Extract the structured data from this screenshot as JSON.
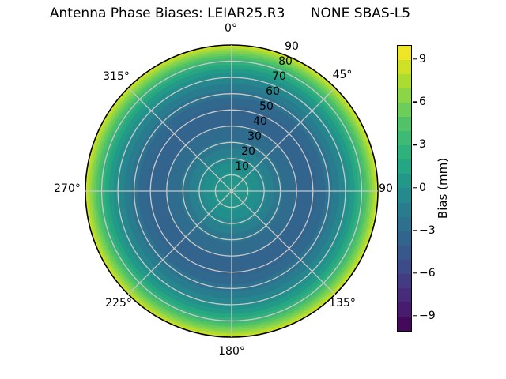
{
  "chart_data": {
    "type": "heatmap",
    "projection": "polar",
    "title": "Antenna Phase Biases: LEIAR25.R3      NONE SBAS-L5",
    "colormap": "viridis",
    "value_range": [
      -10,
      10
    ],
    "grid_on": true,
    "grid_color": "#c8c8c8",
    "outline_color": "#000000",
    "colorbar": {
      "label": "Bias (mm)",
      "ticks": [
        9,
        6,
        3,
        0,
        -3,
        -6,
        -9
      ],
      "position": "right"
    },
    "angle_ticks": [
      {
        "deg": 0,
        "label": "0°"
      },
      {
        "deg": 45,
        "label": "45°"
      },
      {
        "deg": 90,
        "label": "90"
      },
      {
        "deg": 135,
        "label": "135°"
      },
      {
        "deg": 180,
        "label": "180°"
      },
      {
        "deg": 225,
        "label": "225°"
      },
      {
        "deg": 270,
        "label": "270°"
      },
      {
        "deg": 315,
        "label": "315°"
      }
    ],
    "radial_ticks": [
      10,
      20,
      30,
      40,
      50,
      60,
      70,
      80,
      90
    ],
    "radial_tick_angle_deg": 22.5,
    "radial_axis_max": 90,
    "radial_profile": {
      "zenith_deg": [
        0,
        10,
        20,
        30,
        40,
        50,
        60,
        70,
        80,
        85,
        90
      ],
      "bias_mm": [
        1.0,
        0.5,
        -0.5,
        -1.8,
        -2.7,
        -2.7,
        -1.8,
        -0.3,
        3.5,
        6.5,
        9.5
      ],
      "azimuthal_variation": "none"
    },
    "radial_bands": [
      {
        "from": 0,
        "to": 5,
        "color": "#259a89"
      },
      {
        "from": 5,
        "to": 13,
        "color": "#23958b"
      },
      {
        "from": 13,
        "to": 19,
        "color": "#218f8c"
      },
      {
        "from": 19,
        "to": 24,
        "color": "#24888d"
      },
      {
        "from": 24,
        "to": 29,
        "color": "#28808e"
      },
      {
        "from": 29,
        "to": 35,
        "color": "#2c768e"
      },
      {
        "from": 35,
        "to": 44,
        "color": "#306c8e"
      },
      {
        "from": 44,
        "to": 58,
        "color": "#33648d"
      },
      {
        "from": 58,
        "to": 64,
        "color": "#31698e"
      },
      {
        "from": 64,
        "to": 69,
        "color": "#2d728e"
      },
      {
        "from": 69,
        "to": 73.5,
        "color": "#297c8e"
      },
      {
        "from": 73.5,
        "to": 77.5,
        "color": "#25868e"
      },
      {
        "from": 77.5,
        "to": 81,
        "color": "#22918b"
      },
      {
        "from": 81,
        "to": 84,
        "color": "#239a87"
      },
      {
        "from": 84,
        "to": 86.5,
        "color": "#27a682"
      },
      {
        "from": 86.5,
        "to": 88.7,
        "color": "#31b07b"
      },
      {
        "from": 88.7,
        "to": 90.8,
        "color": "#3fb973"
      },
      {
        "from": 90.8,
        "to": 92.7,
        "color": "#50c266"
      },
      {
        "from": 92.7,
        "to": 94.4,
        "color": "#66cb5c"
      },
      {
        "from": 94.4,
        "to": 96,
        "color": "#7ed24f"
      },
      {
        "from": 96,
        "to": 97.5,
        "color": "#99d841"
      },
      {
        "from": 97.5,
        "to": 98.9,
        "color": "#b5dd2e"
      },
      {
        "from": 98.9,
        "to": 100,
        "color": "#d6e221"
      }
    ],
    "colorbar_bands_top_to_bottom": [
      "#ede525",
      "#cde126",
      "#acdc31",
      "#8bd546",
      "#6dcd59",
      "#52c268",
      "#3dba74",
      "#2eb17d",
      "#25a684",
      "#239889",
      "#248a8d",
      "#297c8e",
      "#2e708e",
      "#32658d",
      "#38588c",
      "#3e4b89",
      "#433c83",
      "#462c7a",
      "#471b6d",
      "#45095c"
    ]
  }
}
